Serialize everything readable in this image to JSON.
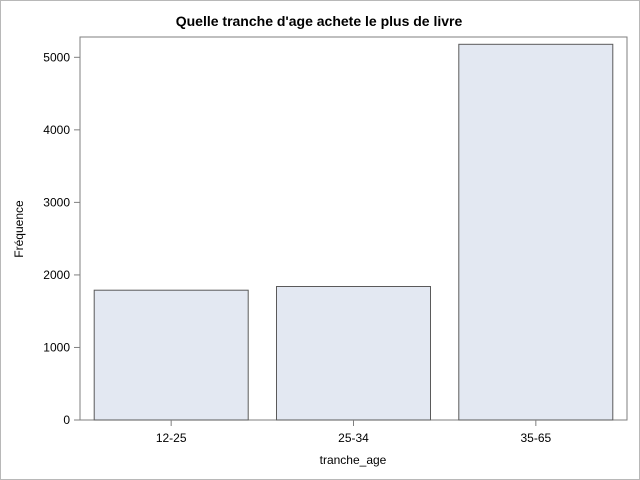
{
  "chart_data": {
    "type": "bar",
    "title": "Quelle tranche d'age achete le plus de livre",
    "xlabel": "tranche_age",
    "ylabel": "Fréquence",
    "categories": [
      "12-25",
      "25-34",
      "35-65"
    ],
    "values": [
      1790,
      1840,
      5180
    ],
    "ylim": [
      0,
      5280
    ],
    "yticks": [
      0,
      1000,
      2000,
      3000,
      4000,
      5000
    ],
    "grid": false,
    "legend": "none",
    "colors": {
      "bar_fill": "#e3e8f2",
      "bar_stroke": "#5a5a5a",
      "axis": "#7f7f7f"
    }
  }
}
